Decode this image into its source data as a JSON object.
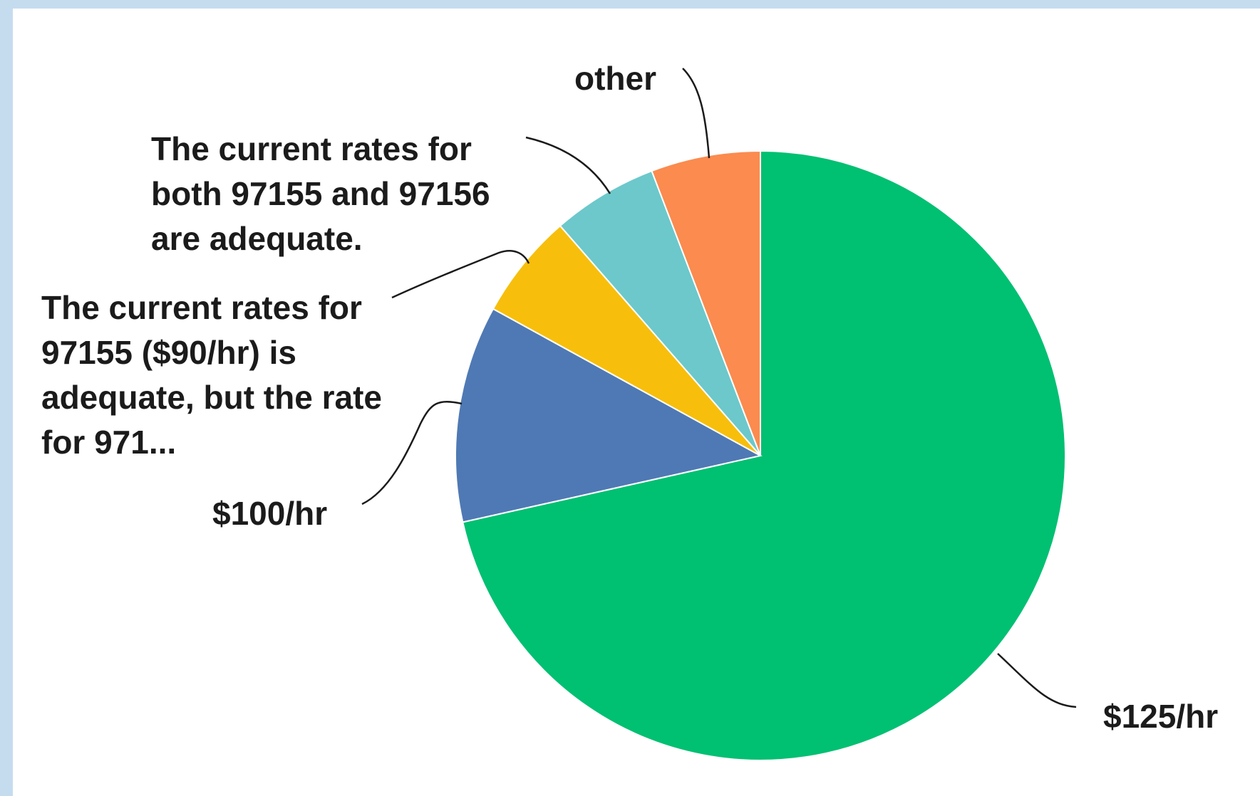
{
  "chart_data": {
    "type": "pie",
    "title": "",
    "slices": [
      {
        "label": "$125/hr",
        "value": 71.5,
        "color": "#00c072",
        "label_lines": [
          "$125/hr"
        ]
      },
      {
        "label": "$100/hr",
        "value": 11.5,
        "color": "#4f79b4",
        "label_lines": [
          "$100/hr"
        ]
      },
      {
        "label": "The current rates for 97155 ($90/hr) is adequate, but the rate for 971...",
        "value": 5.6,
        "color": "#f7bf0b",
        "label_lines": [
          "The current rates for",
          "97155 ($90/hr) is",
          "adequate, but the rate",
          "for 971..."
        ]
      },
      {
        "label": "The current rates for both 97155 and 97156 are adequate.",
        "value": 5.6,
        "color": "#6cc8cb",
        "label_lines": [
          "The current rates for",
          "both 97155 and 97156",
          "are adequate."
        ]
      },
      {
        "label": "other",
        "value": 5.8,
        "color": "#fb8b4f",
        "label_lines": [
          "other"
        ]
      }
    ],
    "start_angle_deg": 0,
    "direction": "clockwise",
    "legend": "none"
  }
}
